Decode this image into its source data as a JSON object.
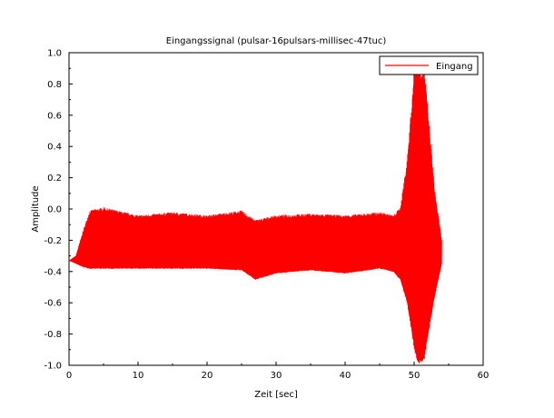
{
  "chart_data": {
    "type": "line",
    "title": "Eingangssignal (pulsar-16pulsars-millisec-47tuc)",
    "xlabel": "Zeit [sec]",
    "ylabel": "Amplitude",
    "xlim": [
      0,
      60
    ],
    "ylim": [
      -1.0,
      1.0
    ],
    "x_ticks": [
      "0",
      "10",
      "20",
      "30",
      "40",
      "50",
      "60"
    ],
    "y_ticks": [
      "-1.0",
      "-0.8",
      "-0.6",
      "-0.4",
      "-0.2",
      "0.0",
      "0.2",
      "0.4",
      "0.6",
      "0.8",
      "1.0"
    ],
    "grid": false,
    "legend_position": "top-right",
    "series": [
      {
        "name": "Eingang",
        "color": "#ff0000",
        "envelope": {
          "t": [
            0,
            1,
            2,
            3,
            5,
            10,
            15,
            20,
            25,
            27,
            30,
            35,
            40,
            45,
            47,
            48,
            49,
            50,
            50.5,
            51,
            51.5,
            52,
            53,
            54
          ],
          "upper": [
            -0.33,
            -0.3,
            -0.15,
            -0.02,
            0.0,
            -0.05,
            -0.03,
            -0.05,
            -0.02,
            -0.08,
            -0.05,
            -0.04,
            -0.05,
            -0.03,
            -0.05,
            0.0,
            0.3,
            0.85,
            0.9,
            0.88,
            0.85,
            0.6,
            0.1,
            -0.2
          ],
          "lower": [
            -0.33,
            -0.35,
            -0.37,
            -0.38,
            -0.38,
            -0.38,
            -0.38,
            -0.38,
            -0.39,
            -0.45,
            -0.41,
            -0.39,
            -0.41,
            -0.38,
            -0.4,
            -0.45,
            -0.6,
            -0.88,
            -0.98,
            -0.97,
            -0.95,
            -0.8,
            -0.55,
            -0.35
          ]
        }
      }
    ]
  }
}
